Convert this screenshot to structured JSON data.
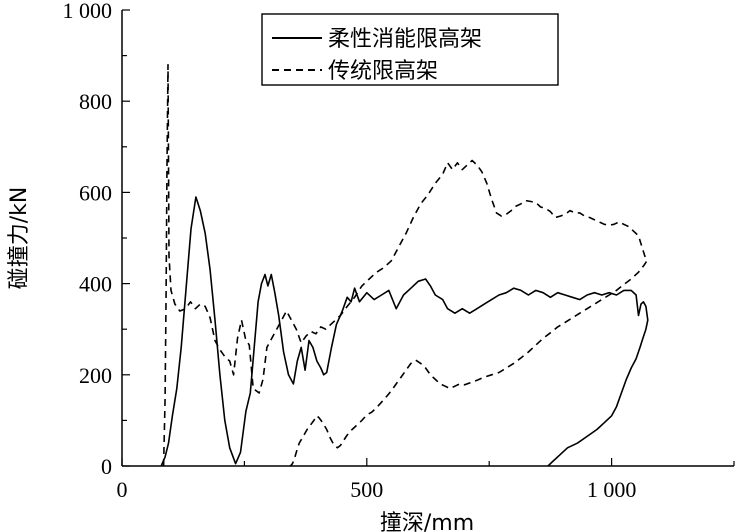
{
  "chart_data": {
    "type": "line",
    "xlabel": "撞深/mm",
    "ylabel": "碰撞力/kN",
    "xlim": [
      0,
      1250
    ],
    "ylim": [
      0,
      1000
    ],
    "x_ticks": [
      {
        "value": 0,
        "label": "0"
      },
      {
        "value": 500,
        "label": "500"
      },
      {
        "value": 1000,
        "label": "1 000"
      }
    ],
    "y_ticks": [
      {
        "value": 0,
        "label": "0"
      },
      {
        "value": 200,
        "label": "200"
      },
      {
        "value": 400,
        "label": "400"
      },
      {
        "value": 600,
        "label": "600"
      },
      {
        "value": 800,
        "label": "800"
      },
      {
        "value": 1000,
        "label": "1 000"
      }
    ],
    "legend": "top-right",
    "series": [
      {
        "name": "柔性消能限高架",
        "style": "solid",
        "color": "#000000",
        "points": [
          [
            80,
            0
          ],
          [
            88,
            20
          ],
          [
            95,
            50
          ],
          [
            103,
            110
          ],
          [
            112,
            170
          ],
          [
            121,
            260
          ],
          [
            131,
            390
          ],
          [
            141,
            520
          ],
          [
            151,
            590
          ],
          [
            160,
            560
          ],
          [
            170,
            510
          ],
          [
            180,
            430
          ],
          [
            190,
            320
          ],
          [
            200,
            200
          ],
          [
            210,
            100
          ],
          [
            220,
            40
          ],
          [
            232,
            5
          ],
          [
            242,
            30
          ],
          [
            253,
            120
          ],
          [
            262,
            160
          ],
          [
            270,
            260
          ],
          [
            278,
            360
          ],
          [
            285,
            400
          ],
          [
            292,
            420
          ],
          [
            298,
            395
          ],
          [
            305,
            420
          ],
          [
            312,
            380
          ],
          [
            320,
            330
          ],
          [
            330,
            250
          ],
          [
            340,
            200
          ],
          [
            350,
            180
          ],
          [
            358,
            230
          ],
          [
            366,
            260
          ],
          [
            374,
            210
          ],
          [
            382,
            275
          ],
          [
            390,
            260
          ],
          [
            398,
            230
          ],
          [
            406,
            215
          ],
          [
            412,
            200
          ],
          [
            418,
            205
          ],
          [
            428,
            260
          ],
          [
            438,
            310
          ],
          [
            450,
            340
          ],
          [
            460,
            370
          ],
          [
            468,
            360
          ],
          [
            475,
            390
          ],
          [
            485,
            360
          ],
          [
            500,
            380
          ],
          [
            515,
            365
          ],
          [
            530,
            375
          ],
          [
            545,
            385
          ],
          [
            560,
            345
          ],
          [
            575,
            375
          ],
          [
            590,
            390
          ],
          [
            605,
            405
          ],
          [
            620,
            410
          ],
          [
            630,
            395
          ],
          [
            640,
            375
          ],
          [
            655,
            365
          ],
          [
            665,
            345
          ],
          [
            680,
            335
          ],
          [
            695,
            345
          ],
          [
            710,
            335
          ],
          [
            725,
            345
          ],
          [
            740,
            355
          ],
          [
            755,
            365
          ],
          [
            770,
            375
          ],
          [
            785,
            380
          ],
          [
            800,
            390
          ],
          [
            815,
            385
          ],
          [
            830,
            375
          ],
          [
            845,
            385
          ],
          [
            860,
            380
          ],
          [
            875,
            370
          ],
          [
            890,
            380
          ],
          [
            905,
            375
          ],
          [
            920,
            370
          ],
          [
            935,
            365
          ],
          [
            950,
            375
          ],
          [
            965,
            380
          ],
          [
            980,
            375
          ],
          [
            995,
            380
          ],
          [
            1010,
            375
          ],
          [
            1025,
            385
          ],
          [
            1040,
            385
          ],
          [
            1050,
            375
          ],
          [
            1055,
            330
          ],
          [
            1060,
            355
          ],
          [
            1065,
            360
          ],
          [
            1070,
            350
          ],
          [
            1074,
            320
          ],
          [
            1070,
            300
          ],
          [
            1064,
            280
          ],
          [
            1058,
            260
          ],
          [
            1050,
            235
          ],
          [
            1040,
            215
          ],
          [
            1030,
            190
          ],
          [
            1020,
            160
          ],
          [
            1010,
            130
          ],
          [
            1000,
            110
          ],
          [
            985,
            95
          ],
          [
            970,
            80
          ],
          [
            950,
            65
          ],
          [
            930,
            50
          ],
          [
            910,
            40
          ],
          [
            895,
            25
          ],
          [
            880,
            10
          ],
          [
            870,
            0
          ]
        ]
      },
      {
        "name": "传统限高架",
        "style": "dashed",
        "color": "#000000",
        "points": [
          [
            85,
            0
          ],
          [
            88,
            150
          ],
          [
            90,
            380
          ],
          [
            92,
            660
          ],
          [
            94,
            880
          ],
          [
            96,
            460
          ],
          [
            100,
            385
          ],
          [
            108,
            355
          ],
          [
            118,
            340
          ],
          [
            130,
            345
          ],
          [
            140,
            360
          ],
          [
            150,
            345
          ],
          [
            160,
            355
          ],
          [
            170,
            350
          ],
          [
            180,
            325
          ],
          [
            190,
            275
          ],
          [
            200,
            255
          ],
          [
            210,
            240
          ],
          [
            220,
            230
          ],
          [
            228,
            200
          ],
          [
            236,
            280
          ],
          [
            244,
            320
          ],
          [
            252,
            280
          ],
          [
            260,
            265
          ],
          [
            268,
            170
          ],
          [
            274,
            165
          ],
          [
            280,
            160
          ],
          [
            288,
            190
          ],
          [
            296,
            260
          ],
          [
            306,
            280
          ],
          [
            316,
            300
          ],
          [
            326,
            320
          ],
          [
            336,
            340
          ],
          [
            346,
            320
          ],
          [
            356,
            300
          ],
          [
            366,
            270
          ],
          [
            376,
            285
          ],
          [
            386,
            295
          ],
          [
            396,
            290
          ],
          [
            406,
            305
          ],
          [
            416,
            300
          ],
          [
            426,
            310
          ],
          [
            436,
            320
          ],
          [
            446,
            330
          ],
          [
            460,
            350
          ],
          [
            475,
            370
          ],
          [
            490,
            395
          ],
          [
            505,
            410
          ],
          [
            520,
            425
          ],
          [
            535,
            435
          ],
          [
            550,
            450
          ],
          [
            565,
            480
          ],
          [
            580,
            510
          ],
          [
            595,
            545
          ],
          [
            610,
            575
          ],
          [
            625,
            595
          ],
          [
            640,
            620
          ],
          [
            655,
            640
          ],
          [
            665,
            665
          ],
          [
            675,
            650
          ],
          [
            685,
            665
          ],
          [
            695,
            650
          ],
          [
            705,
            660
          ],
          [
            715,
            670
          ],
          [
            725,
            660
          ],
          [
            735,
            645
          ],
          [
            745,
            620
          ],
          [
            755,
            585
          ],
          [
            765,
            555
          ],
          [
            775,
            548
          ],
          [
            785,
            552
          ],
          [
            795,
            560
          ],
          [
            805,
            570
          ],
          [
            815,
            575
          ],
          [
            825,
            582
          ],
          [
            835,
            580
          ],
          [
            845,
            578
          ],
          [
            855,
            568
          ],
          [
            865,
            565
          ],
          [
            875,
            558
          ],
          [
            885,
            545
          ],
          [
            895,
            548
          ],
          [
            905,
            552
          ],
          [
            915,
            560
          ],
          [
            925,
            555
          ],
          [
            935,
            555
          ],
          [
            945,
            548
          ],
          [
            955,
            545
          ],
          [
            965,
            540
          ],
          [
            975,
            535
          ],
          [
            985,
            530
          ],
          [
            995,
            528
          ],
          [
            1005,
            530
          ],
          [
            1015,
            535
          ],
          [
            1025,
            530
          ],
          [
            1035,
            525
          ],
          [
            1045,
            515
          ],
          [
            1055,
            505
          ],
          [
            1062,
            480
          ],
          [
            1068,
            460
          ],
          [
            1072,
            450
          ],
          [
            1066,
            440
          ],
          [
            1055,
            425
          ],
          [
            1040,
            410
          ],
          [
            1025,
            398
          ],
          [
            1010,
            385
          ],
          [
            995,
            375
          ],
          [
            980,
            365
          ],
          [
            965,
            355
          ],
          [
            950,
            345
          ],
          [
            935,
            335
          ],
          [
            920,
            325
          ],
          [
            905,
            315
          ],
          [
            890,
            305
          ],
          [
            875,
            292
          ],
          [
            860,
            280
          ],
          [
            845,
            265
          ],
          [
            830,
            250
          ],
          [
            815,
            237
          ],
          [
            800,
            225
          ],
          [
            785,
            215
          ],
          [
            770,
            205
          ],
          [
            755,
            200
          ],
          [
            740,
            195
          ],
          [
            725,
            188
          ],
          [
            710,
            182
          ],
          [
            700,
            178
          ],
          [
            690,
            180
          ],
          [
            680,
            175
          ],
          [
            670,
            170
          ],
          [
            660,
            175
          ],
          [
            650,
            180
          ],
          [
            640,
            190
          ],
          [
            630,
            200
          ],
          [
            620,
            215
          ],
          [
            610,
            225
          ],
          [
            600,
            232
          ],
          [
            590,
            225
          ],
          [
            580,
            210
          ],
          [
            570,
            195
          ],
          [
            560,
            180
          ],
          [
            550,
            165
          ],
          [
            540,
            152
          ],
          [
            530,
            140
          ],
          [
            520,
            128
          ],
          [
            510,
            118
          ],
          [
            500,
            112
          ],
          [
            490,
            100
          ],
          [
            480,
            90
          ],
          [
            470,
            80
          ],
          [
            460,
            68
          ],
          [
            452,
            55
          ],
          [
            446,
            45
          ],
          [
            440,
            40
          ],
          [
            432,
            48
          ],
          [
            425,
            62
          ],
          [
            418,
            80
          ],
          [
            410,
            95
          ],
          [
            403,
            105
          ],
          [
            398,
            110
          ],
          [
            392,
            100
          ],
          [
            385,
            90
          ],
          [
            378,
            80
          ],
          [
            370,
            65
          ],
          [
            362,
            50
          ],
          [
            356,
            30
          ],
          [
            352,
            15
          ],
          [
            348,
            5
          ],
          [
            344,
            0
          ]
        ]
      }
    ]
  }
}
